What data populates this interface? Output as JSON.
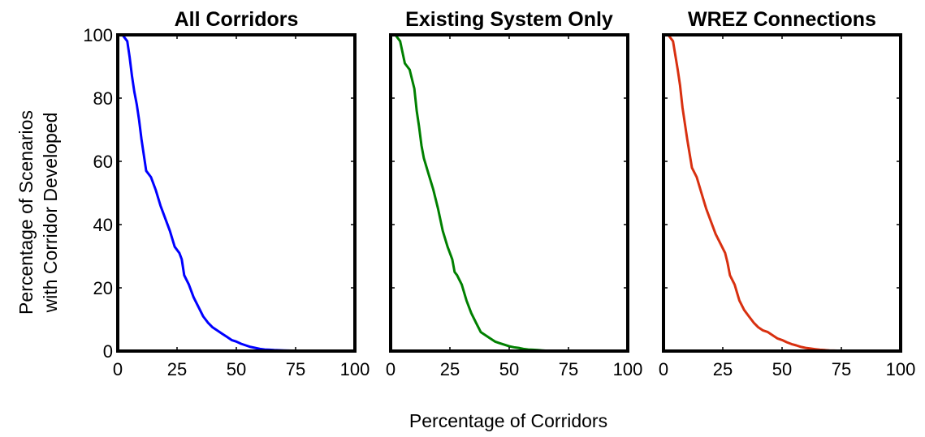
{
  "figure": {
    "ylabel_lines": [
      "Percentage of Scenarios",
      "with Corridor Developed"
    ],
    "xlabel": "Percentage of Corridors"
  },
  "chart_data": [
    {
      "type": "line",
      "title": "All Corridors",
      "xlabel": "Percentage of Corridors",
      "ylabel": "Percentage of Scenarios with Corridor Developed",
      "xlim": [
        0,
        100
      ],
      "ylim": [
        0,
        100
      ],
      "xticks": [
        0,
        25,
        50,
        75,
        100
      ],
      "yticks": [
        0,
        20,
        40,
        60,
        80,
        100
      ],
      "grid": false,
      "series": [
        {
          "color": "#0000ff",
          "x": [
            0,
            2,
            4,
            5,
            6,
            7,
            8,
            9,
            10,
            11,
            12,
            14,
            16,
            18,
            20,
            22,
            24,
            26,
            27,
            28,
            30,
            32,
            34,
            36,
            38,
            40,
            42,
            44,
            46,
            48,
            50,
            52,
            54,
            56,
            58,
            60,
            62,
            64,
            66,
            70,
            75,
            80,
            90,
            100
          ],
          "y": [
            100,
            100,
            98,
            93,
            87,
            82,
            78,
            73,
            67,
            62,
            57,
            55,
            51,
            46,
            42,
            38,
            33,
            31,
            29,
            24,
            21,
            17,
            14,
            11,
            9,
            7.5,
            6.5,
            5.5,
            4.5,
            3.5,
            3,
            2.3,
            1.8,
            1.3,
            1,
            0.7,
            0.5,
            0.4,
            0.3,
            0.2,
            0.1,
            0,
            0,
            0
          ]
        }
      ]
    },
    {
      "type": "line",
      "title": "Existing System Only",
      "xlabel": "Percentage of Corridors",
      "ylabel": "Percentage of Scenarios with Corridor Developed",
      "xlim": [
        0,
        100
      ],
      "ylim": [
        0,
        100
      ],
      "xticks": [
        0,
        25,
        50,
        75,
        100
      ],
      "yticks": [
        0,
        20,
        40,
        60,
        80,
        100
      ],
      "grid": false,
      "series": [
        {
          "color": "#008000",
          "x": [
            0,
            2,
            4,
            6,
            8,
            10,
            11,
            12,
            13,
            14,
            16,
            18,
            20,
            22,
            24,
            26,
            27,
            28,
            30,
            32,
            34,
            36,
            38,
            40,
            42,
            44,
            46,
            48,
            50,
            52,
            54,
            56,
            58,
            60,
            62,
            64,
            66,
            70,
            75,
            80,
            90,
            100
          ],
          "y": [
            100,
            100,
            98,
            91,
            89,
            83,
            76,
            71,
            65,
            61,
            56,
            51,
            45,
            38,
            33,
            29,
            25,
            24,
            21,
            16,
            12,
            9,
            6,
            5,
            4,
            3,
            2.5,
            2,
            1.5,
            1.2,
            1,
            0.7,
            0.5,
            0.4,
            0.3,
            0.2,
            0.1,
            0,
            0,
            0,
            0,
            0
          ]
        }
      ]
    },
    {
      "type": "line",
      "title": "WREZ Connections",
      "xlabel": "Percentage of Corridors",
      "ylabel": "Percentage of Scenarios with Corridor Developed",
      "xlim": [
        0,
        100
      ],
      "ylim": [
        0,
        100
      ],
      "xticks": [
        0,
        25,
        50,
        75,
        100
      ],
      "yticks": [
        0,
        20,
        40,
        60,
        80,
        100
      ],
      "grid": false,
      "series": [
        {
          "color": "#d83010",
          "x": [
            0,
            2,
            4,
            6,
            7,
            8,
            10,
            12,
            14,
            16,
            18,
            20,
            22,
            24,
            26,
            27,
            28,
            30,
            32,
            34,
            36,
            38,
            40,
            42,
            44,
            46,
            48,
            50,
            52,
            54,
            56,
            58,
            60,
            62,
            64,
            66,
            68,
            70,
            75,
            80,
            90,
            100
          ],
          "y": [
            100,
            100,
            98,
            89,
            84,
            77,
            67,
            58,
            55,
            50,
            45,
            41,
            37,
            34,
            31,
            28,
            24,
            21,
            16,
            13,
            11,
            9,
            7.5,
            6.5,
            6,
            5,
            4,
            3.5,
            2.8,
            2.2,
            1.8,
            1.3,
            1,
            0.8,
            0.6,
            0.4,
            0.3,
            0.2,
            0.1,
            0,
            0,
            0
          ]
        }
      ]
    }
  ]
}
